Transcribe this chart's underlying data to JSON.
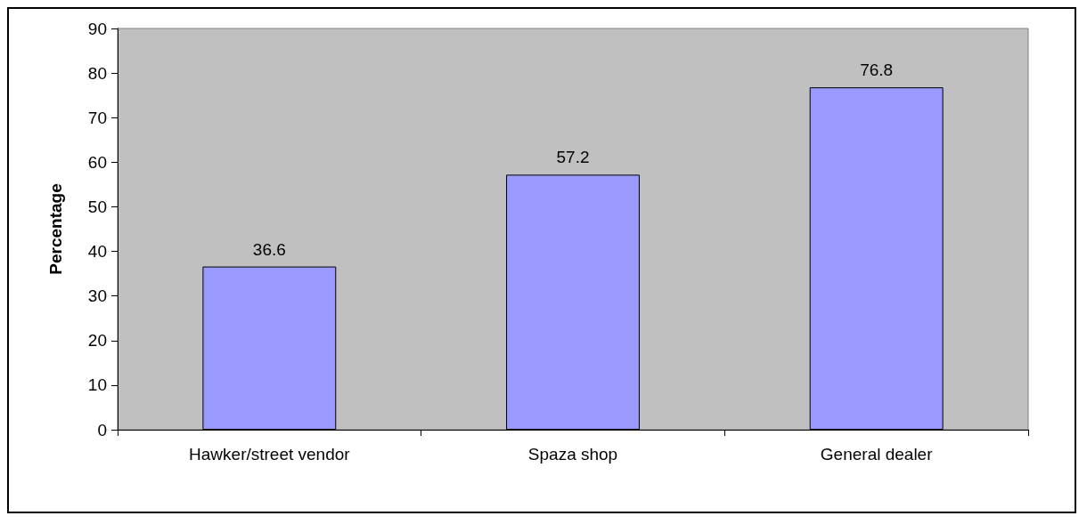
{
  "chart_data": {
    "type": "bar",
    "ylabel": "Percentage",
    "categories": [
      "Hawker/street vendor",
      "Spaza shop",
      "General dealer"
    ],
    "values": [
      36.6,
      57.2,
      76.8
    ],
    "color": "#9999ff",
    "ylim": [
      0,
      90
    ],
    "yticks": [
      0,
      10,
      20,
      30,
      40,
      50,
      60,
      70,
      80,
      90
    ],
    "grid": false,
    "data_labels": true
  }
}
